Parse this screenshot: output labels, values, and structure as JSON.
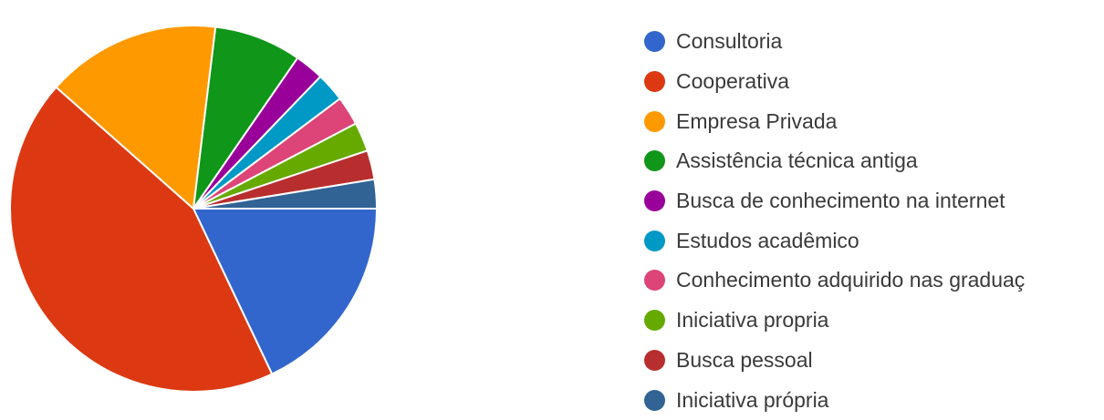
{
  "chart_data": {
    "type": "pie",
    "start_angle_deg": 90,
    "direction": "clockwise",
    "slices": [
      {
        "label": "Consultoria",
        "value": 17.5,
        "color": "#3366cc"
      },
      {
        "label": "Cooperativa",
        "value": 42.5,
        "color": "#dc3912"
      },
      {
        "label": "Empresa Privada",
        "value": 15.0,
        "color": "#ff9900"
      },
      {
        "label": "Assistência técnica antiga",
        "value": 7.5,
        "color": "#109618"
      },
      {
        "label": "Busca de conhecimento na internet",
        "value": 2.5,
        "color": "#990099"
      },
      {
        "label": "Estudos acadêmico",
        "value": 2.5,
        "color": "#0099c6"
      },
      {
        "label": "Conhecimento adquirido nas graduaç",
        "value": 2.5,
        "color": "#dd4477"
      },
      {
        "label": "Iniciativa propria",
        "value": 2.5,
        "color": "#66aa00"
      },
      {
        "label": "Busca pessoal",
        "value": 2.5,
        "color": "#b82e2e"
      },
      {
        "label": "Iniciativa própria",
        "value": 2.5,
        "color": "#316395"
      }
    ],
    "legend_position": "right"
  }
}
